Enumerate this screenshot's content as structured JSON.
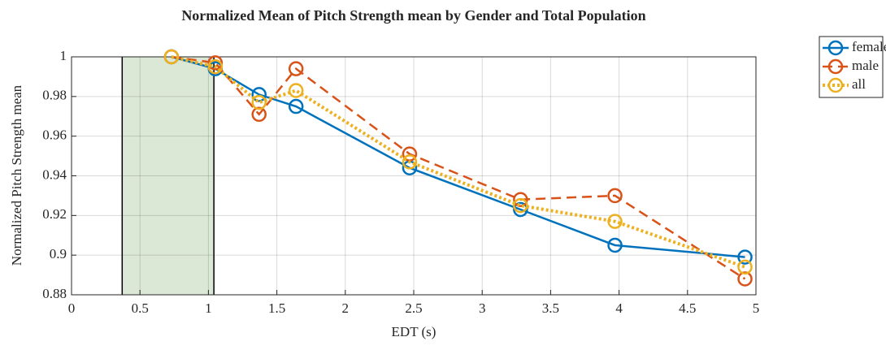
{
  "chart_data": {
    "type": "line",
    "title": "Normalized Mean of Pitch Strength mean by Gender and Total Population",
    "x_label": "EDT (s)",
    "y_label": "Normalized Pitch Strength mean",
    "x": [
      0.73,
      1.05,
      1.37,
      1.64,
      2.47,
      3.28,
      3.97,
      4.92
    ],
    "series": [
      {
        "name": "female",
        "color": "#0072bd",
        "dash": "solid",
        "values": [
          1.0,
          0.994,
          0.981,
          0.975,
          0.944,
          0.923,
          0.905,
          0.899
        ]
      },
      {
        "name": "male",
        "color": "#d95319",
        "dash": "dashed",
        "values": [
          1.0,
          0.997,
          0.971,
          0.994,
          0.951,
          0.928,
          0.93,
          0.888
        ]
      },
      {
        "name": "all",
        "color": "#edb120",
        "dash": "dotted",
        "values": [
          1.0,
          0.995,
          0.977,
          0.983,
          0.947,
          0.925,
          0.917,
          0.894
        ]
      }
    ],
    "shaded_region": [
      0.37,
      1.04
    ],
    "shaded_color": "#dce8d6",
    "xlim": [
      0,
      5
    ],
    "xticks": [
      0,
      0.5,
      1,
      1.5,
      2,
      2.5,
      3,
      3.5,
      4,
      4.5,
      5
    ],
    "ylim": [
      0.88,
      1
    ],
    "yticks": [
      0.88,
      0.9,
      0.92,
      0.94,
      0.96,
      0.98,
      1
    ],
    "grid": true,
    "legend": "outside-right"
  }
}
